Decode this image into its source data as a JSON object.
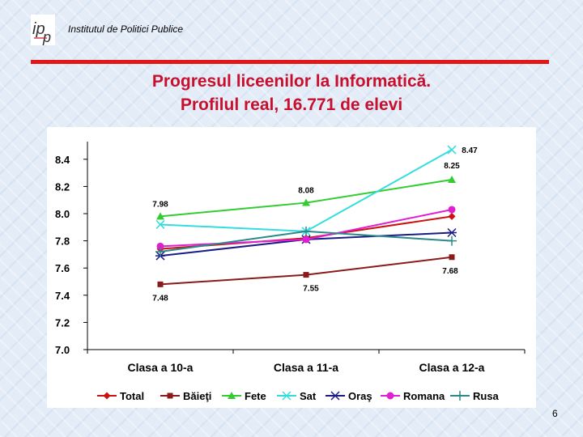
{
  "header": {
    "institution": "Institutul de Politici Publice",
    "logo_text": "ipp"
  },
  "title": {
    "line1": "Progresul liceenilor la Informatică.",
    "line2": "Profilul real, 16.771 de elevi"
  },
  "page_number": "6",
  "colors": {
    "title": "#c8102e",
    "rule": "#e01818",
    "background": "#e3ecf7"
  },
  "chart_data": {
    "type": "line",
    "title": "",
    "xlabel": "",
    "ylabel": "",
    "categories": [
      "Clasa a 10-a",
      "Clasa a 11-a",
      "Clasa a 12-a"
    ],
    "ylim": [
      7.0,
      8.5
    ],
    "yticks": [
      "7.0",
      "7.2",
      "7.4",
      "7.6",
      "7.8",
      "8.0",
      "8.2",
      "8.4"
    ],
    "grid": false,
    "legend_position": "bottom",
    "series": [
      {
        "name": "Total",
        "values": [
          7.74,
          7.82,
          7.98
        ],
        "color": "#cc1111",
        "marker": "diamond"
      },
      {
        "name": "Băieţi",
        "values": [
          7.48,
          7.55,
          7.68
        ],
        "color": "#8b1a1a",
        "marker": "square"
      },
      {
        "name": "Fete",
        "values": [
          7.98,
          8.08,
          8.25
        ],
        "color": "#33cc33",
        "marker": "triangle"
      },
      {
        "name": "Sat",
        "values": [
          7.92,
          7.87,
          8.47
        ],
        "color": "#33dddd",
        "marker": "x"
      },
      {
        "name": "Oraş",
        "values": [
          7.69,
          7.81,
          7.86
        ],
        "color": "#1a1a88",
        "marker": "star"
      },
      {
        "name": "Romana",
        "values": [
          7.76,
          7.81,
          8.03
        ],
        "color": "#e020d0",
        "marker": "circle"
      },
      {
        "name": "Rusa",
        "values": [
          7.72,
          7.87,
          7.8
        ],
        "color": "#2a8a8a",
        "marker": "plus"
      }
    ],
    "data_labels": [
      {
        "series": "Fete",
        "point": 0,
        "text": "7.98"
      },
      {
        "series": "Fete",
        "point": 1,
        "text": "8.08"
      },
      {
        "series": "Fete",
        "point": 2,
        "text": "8.25"
      },
      {
        "series": "Sat",
        "point": 2,
        "text": "8.47"
      },
      {
        "series": "Băieţi",
        "point": 0,
        "text": "7.48"
      },
      {
        "series": "Băieţi",
        "point": 1,
        "text": "7.55"
      },
      {
        "series": "Băieţi",
        "point": 2,
        "text": "7.68"
      }
    ]
  }
}
